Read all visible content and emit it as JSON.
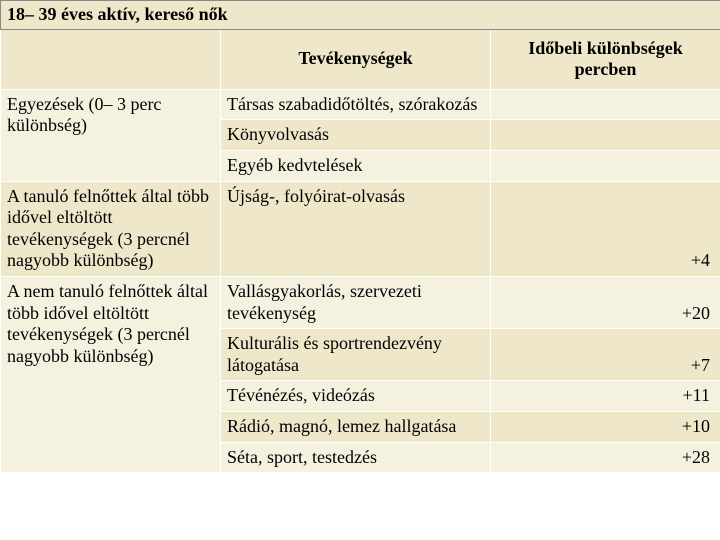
{
  "title": "18– 39 éves aktív, kereső nők",
  "headers": {
    "col2": "Tevékenységek",
    "col3_line1": "Időbeli különbségek",
    "col3_line2": "percben"
  },
  "group1": {
    "label": "Egyezések (0– 3 perc különbség)",
    "rows": [
      {
        "activity": "Társas szabadidőtöltés, szórakozás",
        "value": ""
      },
      {
        "activity": "Könyvolvasás",
        "value": ""
      },
      {
        "activity": "Egyéb kedvtelések",
        "value": ""
      }
    ]
  },
  "group2": {
    "label": "A tanuló felnőttek által több idővel eltöltött tevékenységek (3 percnél nagyobb különbség)",
    "rows": [
      {
        "activity": "Újság-, folyóirat-olvasás",
        "value": "+4"
      }
    ]
  },
  "group3": {
    "label": "A nem tanuló felnőttek által több idővel eltöltött tevékenységek (3 percnél nagyobb különbség)",
    "rows": [
      {
        "activity": "Vallásgyakorlás, szervezeti tevékenység",
        "value": "+20"
      },
      {
        "activity": "Kulturális és sportrendezvény látogatása",
        "value": "+7"
      },
      {
        "activity": "Tévénézés, videózás",
        "value": "+11"
      },
      {
        "activity": "Rádió, magnó, lemez hallgatása",
        "value": "+10"
      },
      {
        "activity": "Séta, sport, testedzés",
        "value": "+28"
      }
    ]
  }
}
